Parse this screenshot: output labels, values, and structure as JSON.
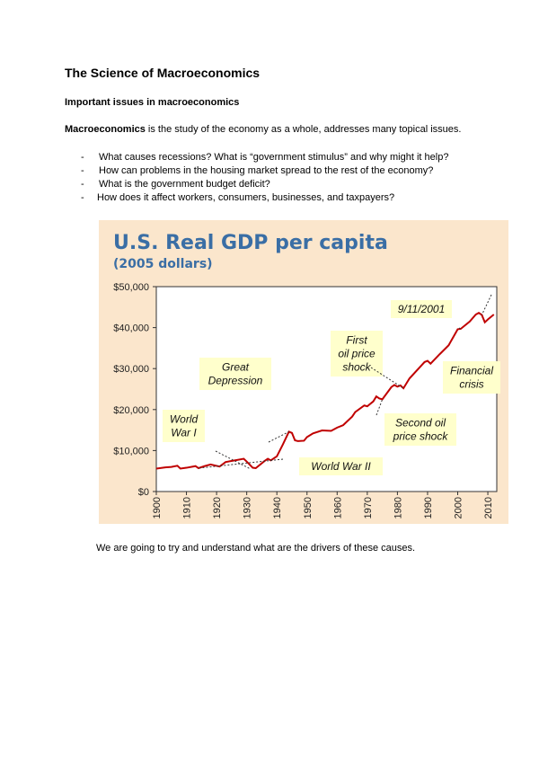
{
  "document": {
    "title": "The Science of Macroeconomics",
    "subtitle": "Important issues in macroeconomics",
    "intro_bold": "Macroeconomics",
    "intro_rest": " is the study of the economy as a whole, addresses many topical issues.",
    "bullets": [
      "What causes recessions? What is “government stimulus” and why might it help?",
      "How can problems in the housing market spread to the rest of the economy?",
      "What is the government budget deficit?",
      "How does it affect workers, consumers, businesses, and taxpayers?"
    ],
    "bullet_marker": "-",
    "outro": "We are going to try and understand what are the drivers of these causes."
  },
  "chart_data": {
    "type": "line",
    "title": "U.S. Real GDP per capita",
    "subtitle": "(2005 dollars)",
    "xlabel": "",
    "ylabel": "",
    "xlim": [
      1900,
      2012
    ],
    "ylim": [
      0,
      50000
    ],
    "yticks": [
      "$0",
      "$10,000",
      "$20,000",
      "$30,000",
      "$40,000",
      "$50,000"
    ],
    "xticks": [
      "1900",
      "1910",
      "1920",
      "1930",
      "1940",
      "1950",
      "1960",
      "1970",
      "1980",
      "1990",
      "2000",
      "2010"
    ],
    "series": [
      {
        "name": "Real GDP per capita",
        "color": "#c00000",
        "x": [
          1900,
          1903,
          1905,
          1907,
          1908,
          1910,
          1913,
          1914,
          1916,
          1918,
          1921,
          1923,
          1926,
          1929,
          1930,
          1932,
          1933,
          1936,
          1937,
          1938,
          1940,
          1942,
          1944,
          1945,
          1946,
          1947,
          1949,
          1950,
          1952,
          1955,
          1958,
          1960,
          1962,
          1965,
          1966,
          1969,
          1970,
          1972,
          1973,
          1974,
          1975,
          1978,
          1979,
          1980,
          1981,
          1982,
          1984,
          1988,
          1989,
          1990,
          1991,
          1994,
          1997,
          2000,
          2001,
          2004,
          2006,
          2007,
          2008,
          2009,
          2010,
          2012
        ],
        "y": [
          5600,
          5900,
          6000,
          6300,
          5600,
          5800,
          6200,
          5700,
          6200,
          6600,
          6100,
          7200,
          7600,
          8000,
          7300,
          5800,
          5700,
          7500,
          8000,
          7600,
          8600,
          11500,
          14600,
          14300,
          12500,
          12300,
          12400,
          13300,
          14200,
          14900,
          14800,
          15600,
          16200,
          18300,
          19400,
          21000,
          20800,
          22000,
          23200,
          22700,
          22500,
          25500,
          26000,
          25600,
          25900,
          25200,
          27600,
          30800,
          31600,
          31900,
          31200,
          33500,
          35700,
          39600,
          39700,
          41500,
          43200,
          43600,
          43100,
          41300,
          42000,
          43200
        ]
      }
    ],
    "annotations": [
      {
        "text": [
          "World",
          "War I"
        ],
        "year": 1914
      },
      {
        "text": [
          "Great",
          "Depression"
        ],
        "year": 1931
      },
      {
        "text": [
          "World War II"
        ],
        "year": 1944
      },
      {
        "text": [
          "First",
          "oil price",
          "shock"
        ],
        "year": 1975
      },
      {
        "text": [
          "Second oil",
          "price shock"
        ],
        "year": 1982
      },
      {
        "text": [
          "9/11/2001"
        ],
        "year": 2001
      },
      {
        "text": [
          "Financial",
          "crisis"
        ],
        "year": 2008
      }
    ],
    "colors": {
      "background": "#fbe6cc",
      "title": "#3a6ea5",
      "line": "#c00000",
      "callout": "#ffffcc"
    }
  }
}
